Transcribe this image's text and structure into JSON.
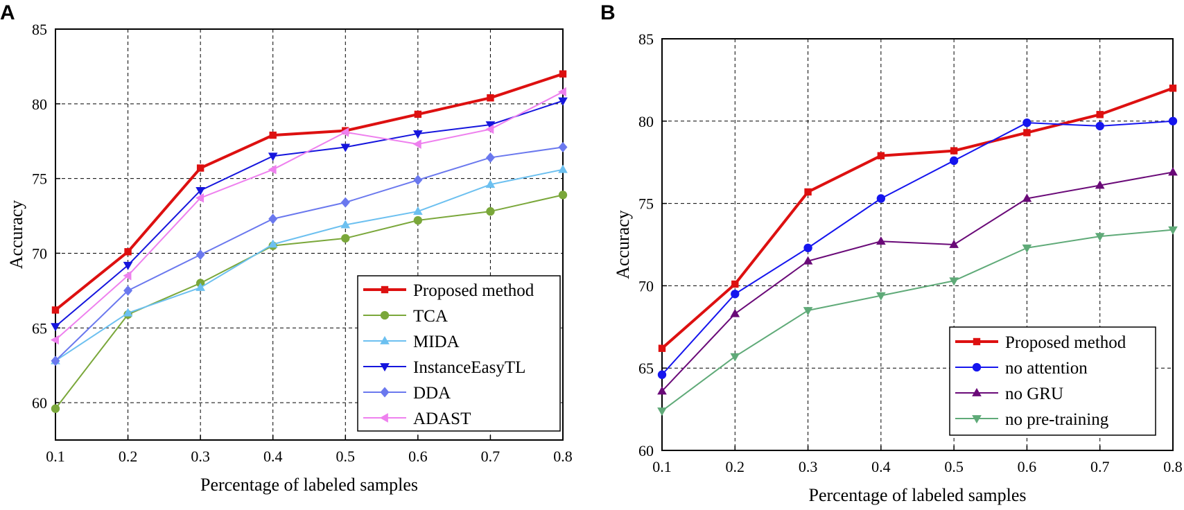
{
  "chart_data": [
    {
      "panel": "A",
      "type": "line",
      "xlabel": "Percentage of labeled samples",
      "ylabel": "Accuracy",
      "xlim": [
        0.1,
        0.8
      ],
      "ylim": [
        57.5,
        85
      ],
      "xticks": [
        0.1,
        0.2,
        0.3,
        0.4,
        0.5,
        0.6,
        0.7,
        0.8
      ],
      "xtick_labels": [
        "0.1",
        "0.2",
        "0.3",
        "0.4",
        "0.5",
        "0.6",
        "0.7",
        "0.8"
      ],
      "yticks": [
        60,
        65,
        70,
        75,
        80,
        85
      ],
      "ytick_labels": [
        "60",
        "65",
        "70",
        "75",
        "80",
        "85"
      ],
      "grid": true,
      "legend_position": "bottom-right",
      "x": [
        0.1,
        0.2,
        0.3,
        0.4,
        0.5,
        0.6,
        0.7,
        0.8
      ],
      "series": [
        {
          "name": "Proposed method",
          "color": "#dd1010",
          "marker": "square",
          "bold": true,
          "values": [
            66.2,
            70.1,
            75.7,
            77.9,
            78.2,
            79.3,
            80.4,
            82.0
          ]
        },
        {
          "name": "TCA",
          "color": "#7aa73a",
          "marker": "circle",
          "values": [
            59.6,
            65.9,
            68.0,
            70.5,
            71.0,
            72.2,
            72.8,
            73.9
          ]
        },
        {
          "name": "MIDA",
          "color": "#6cc0f0",
          "marker": "triangle-up",
          "values": [
            62.8,
            66.0,
            67.7,
            70.6,
            71.9,
            72.8,
            74.6,
            75.6
          ]
        },
        {
          "name": "InstanceEasyTL",
          "color": "#1515dd",
          "marker": "triangle-down",
          "values": [
            65.1,
            69.2,
            74.2,
            76.5,
            77.1,
            78.0,
            78.6,
            80.2
          ]
        },
        {
          "name": "DDA",
          "color": "#6a78ee",
          "marker": "diamond",
          "values": [
            62.8,
            67.5,
            69.9,
            72.3,
            73.4,
            74.9,
            76.4,
            77.1
          ]
        },
        {
          "name": "ADAST",
          "color": "#ee80ee",
          "marker": "triangle-left",
          "values": [
            64.2,
            68.5,
            73.7,
            75.6,
            78.1,
            77.3,
            78.3,
            80.8
          ]
        }
      ]
    },
    {
      "panel": "B",
      "type": "line",
      "xlabel": "Percentage of labeled samples",
      "ylabel": "Accuracy",
      "xlim": [
        0.1,
        0.8
      ],
      "ylim": [
        60,
        85
      ],
      "xticks": [
        0.1,
        0.2,
        0.3,
        0.4,
        0.5,
        0.6,
        0.7,
        0.8
      ],
      "xtick_labels": [
        "0.1",
        "0.2",
        "0.3",
        "0.4",
        "0.5",
        "0.6",
        "0.7",
        "0.8"
      ],
      "yticks": [
        60,
        65,
        70,
        75,
        80,
        85
      ],
      "ytick_labels": [
        "60",
        "65",
        "70",
        "75",
        "80",
        "85"
      ],
      "grid": true,
      "legend_position": "bottom-right",
      "x": [
        0.1,
        0.2,
        0.3,
        0.4,
        0.5,
        0.6,
        0.7,
        0.8
      ],
      "series": [
        {
          "name": "Proposed method",
          "color": "#dd1010",
          "marker": "square",
          "bold": true,
          "values": [
            66.2,
            70.1,
            75.7,
            77.9,
            78.2,
            79.3,
            80.4,
            82.0
          ]
        },
        {
          "name": "no attention",
          "color": "#1515ee",
          "marker": "circle",
          "values": [
            64.6,
            69.5,
            72.3,
            75.3,
            77.6,
            79.9,
            79.7,
            80.0
          ]
        },
        {
          "name": "no GRU",
          "color": "#6a0a78",
          "marker": "triangle-up",
          "values": [
            63.6,
            68.3,
            71.5,
            72.7,
            72.5,
            75.3,
            76.1,
            76.9
          ]
        },
        {
          "name": "no pre-training",
          "color": "#5faa78",
          "marker": "triangle-down",
          "values": [
            62.4,
            65.7,
            68.5,
            69.4,
            70.3,
            72.3,
            73.0,
            73.4
          ]
        }
      ]
    }
  ]
}
